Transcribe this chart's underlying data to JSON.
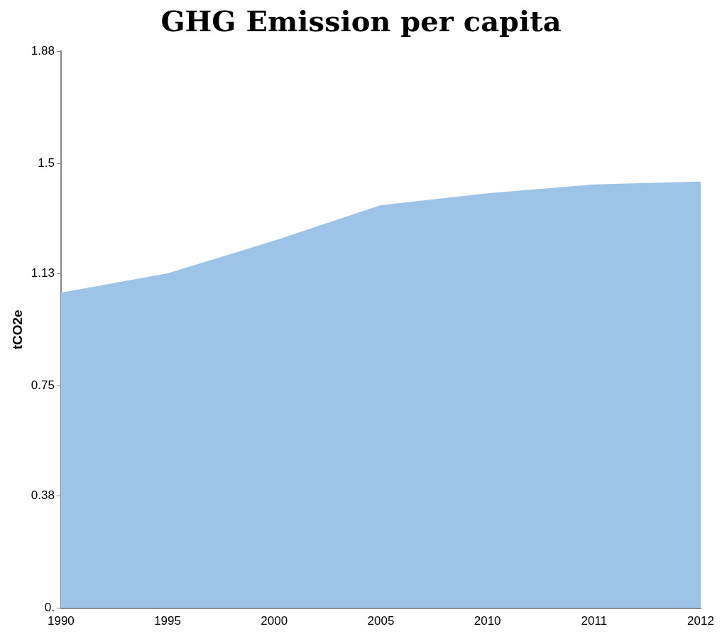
{
  "chart_data": {
    "type": "area",
    "title": "GHG Emission per capita",
    "ylabel": "tCO2e",
    "categories": [
      "1990",
      "1995",
      "2000",
      "2005",
      "2010",
      "2011",
      "2012"
    ],
    "values": [
      1.065,
      1.13,
      1.24,
      1.36,
      1.4,
      1.43,
      1.44
    ],
    "color": "#9dc3e6",
    "ylim": [
      0,
      1.88
    ],
    "yticks": [
      {
        "value": 0,
        "label": "0."
      },
      0.38,
      0.75,
      1.13,
      1.5,
      1.88
    ],
    "grid": false,
    "legend": false
  }
}
